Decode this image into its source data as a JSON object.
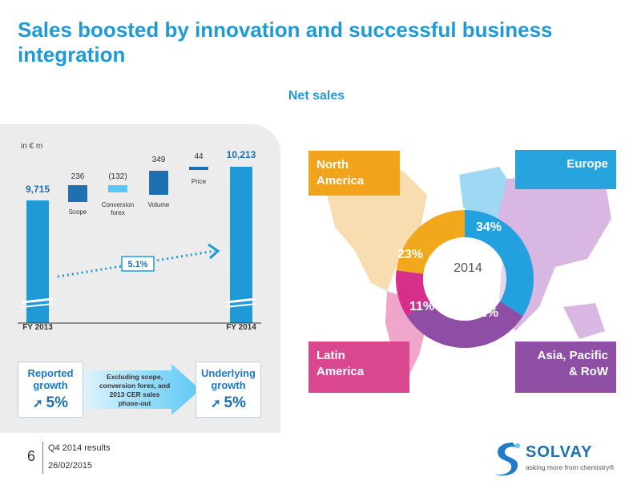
{
  "title": "Sales boosted by innovation and successful business integration",
  "subtitle": "Net sales",
  "chart_data": [
    {
      "type": "bar",
      "chart_kind": "waterfall",
      "unit_label": "in € m",
      "categories": [
        "FY 2013",
        "Scope",
        "Conversion forex",
        "Volume",
        "Price",
        "FY 2014"
      ],
      "value_labels": [
        "9,715",
        "236",
        "(132)",
        "349",
        "44",
        "10,213"
      ],
      "values": [
        9715,
        236,
        -132,
        349,
        44,
        10213
      ],
      "cagr_label": "5.1%",
      "axis_break": true
    },
    {
      "type": "pie",
      "center_label": "2014",
      "categories": [
        "Europe",
        "Asia, Pacific & RoW",
        "Latin America",
        "North America"
      ],
      "values": [
        34,
        32,
        11,
        23
      ],
      "labels": [
        "34%",
        "32%",
        "11%",
        "23%"
      ],
      "colors": [
        "#23a0de",
        "#8f4ea5",
        "#d62f8a",
        "#f2a81d"
      ]
    }
  ],
  "waterfall": {
    "unit": "in € m",
    "fy2013_label": "FY 2013",
    "fy2014_label": "FY 2014",
    "fy2013_value": "9,715",
    "fy2014_value": "10,213",
    "scope_value": "236",
    "scope_label": "Scope",
    "forex_value": "(132)",
    "forex_label_1": "Conversion",
    "forex_label_2": "forex",
    "volume_value": "349",
    "volume_label": "Volume",
    "price_value": "44",
    "price_label": "Price",
    "cagr": "5.1%"
  },
  "growth": {
    "reported_label_1": "Reported",
    "reported_label_2": "growth",
    "reported_value": "5%",
    "underlying_label_1": "Underlying",
    "underlying_label_2": "growth",
    "underlying_value": "5%",
    "arrow_glyph": "➚",
    "explain_1": "Excluding scope,",
    "explain_2": "conversion forex, and",
    "explain_3": "2013 CER sales",
    "explain_4": "phase-out"
  },
  "regions": {
    "north_america_1": "North",
    "north_america_2": "America",
    "europe": "Europe",
    "latin_america_1": "Latin",
    "latin_america_2": "America",
    "asia_1": "Asia, Pacific",
    "asia_2": "& RoW"
  },
  "donut": {
    "center": "2014",
    "europe_pct": "34%",
    "asia_pct": "32%",
    "latam_pct": "11%",
    "na_pct": "23%"
  },
  "footer": {
    "page_number": "6",
    "line1": "Q4 2014 results",
    "line2": "26/02/2015"
  },
  "logo": {
    "name": "SOLVAY",
    "tagline": "asking more from chemistry®"
  },
  "colors": {
    "accent": "#1f9ad6",
    "bar_dark": "#1f6fb3",
    "bar_light": "#5ac8f5",
    "europe": "#23a0de",
    "asia": "#8f4ea5",
    "latam": "#d62f8a",
    "north_america": "#f2a81d"
  }
}
